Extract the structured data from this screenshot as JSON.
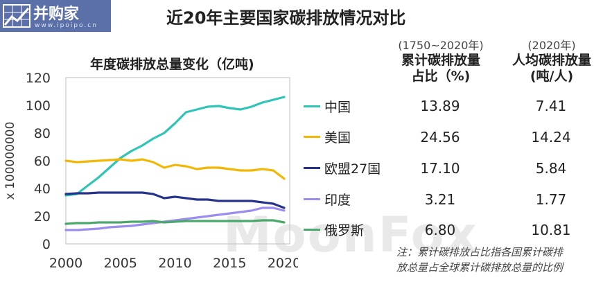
{
  "logo": {
    "name": "并购家",
    "url": "www.ipoipo.cn"
  },
  "title": "近20年主要国家碳排放情况对比",
  "chart_data": {
    "type": "line",
    "title": "年度碳排放总量变化（亿吨)",
    "ylabel": "x 100000000",
    "xlim": [
      2000,
      2020
    ],
    "ylim": [
      0,
      120
    ],
    "xticks": [
      2000,
      2005,
      2010,
      2015,
      2020
    ],
    "yticks": [
      0,
      20,
      40,
      60,
      80,
      100,
      120
    ],
    "grid": false,
    "legend_position": "right",
    "x": [
      2000,
      2001,
      2002,
      2003,
      2004,
      2005,
      2006,
      2007,
      2008,
      2009,
      2010,
      2011,
      2012,
      2013,
      2014,
      2015,
      2016,
      2017,
      2018,
      2019,
      2020
    ],
    "series": [
      {
        "name": "中国",
        "color": "#2ec4b6",
        "values": [
          35,
          36,
          42,
          48,
          55,
          62,
          67,
          71,
          76,
          80,
          87,
          95,
          97,
          99,
          99.5,
          98,
          97,
          99,
          102,
          104,
          106
        ]
      },
      {
        "name": "美国",
        "color": "#f2b705",
        "values": [
          60,
          59,
          59.5,
          60,
          60.5,
          61,
          60,
          61,
          59,
          55,
          57,
          56,
          54,
          55,
          55,
          54,
          53,
          53,
          54,
          53,
          47
        ]
      },
      {
        "name": "欧盟27国",
        "color": "#26338a",
        "values": [
          36,
          36.5,
          36.5,
          37,
          37,
          37,
          37,
          37,
          36,
          33,
          34,
          33,
          32,
          32,
          31,
          31,
          31,
          31,
          30,
          29,
          26
        ]
      },
      {
        "name": "印度",
        "color": "#9c8cf0",
        "values": [
          10,
          10,
          10.5,
          11,
          12,
          12.5,
          13,
          14,
          15,
          16,
          17,
          18,
          19,
          20,
          21,
          22,
          23,
          24,
          26,
          26,
          24
        ]
      },
      {
        "name": "俄罗斯",
        "color": "#4aa86a",
        "values": [
          14.5,
          15,
          15,
          15.5,
          15.5,
          15.5,
          16,
          16,
          16.5,
          15.5,
          16,
          16.5,
          16.5,
          16.5,
          16.5,
          16.5,
          16.5,
          16.5,
          17,
          17,
          15.5
        ]
      }
    ]
  },
  "table": {
    "columns": [
      {
        "sub": "(1750~2020年)",
        "head1": "累计碳排放量",
        "head2": "占比（%)"
      },
      {
        "sub": "(2020年)",
        "head1": "人均碳排放量",
        "head2": "(吨/人)"
      }
    ],
    "rows": [
      {
        "country": "中国",
        "share": "13.89",
        "per_capita": "7.41"
      },
      {
        "country": "美国",
        "share": "24.56",
        "per_capita": "14.24"
      },
      {
        "country": "欧盟27国",
        "share": "17.10",
        "per_capita": "5.84"
      },
      {
        "country": "印度",
        "share": "3.21",
        "per_capita": "1.77"
      },
      {
        "country": "俄罗斯",
        "share": "6.80",
        "per_capita": "10.81"
      }
    ]
  },
  "note": {
    "line1": "注：累计碳排放占比指各国累计碳排",
    "line2": "放总量占全球累计碳排放总量的比例"
  },
  "watermark": "MoonFox",
  "colors": {
    "logo_bg": "#5b6fa8",
    "axis": "#bfbfbf"
  }
}
